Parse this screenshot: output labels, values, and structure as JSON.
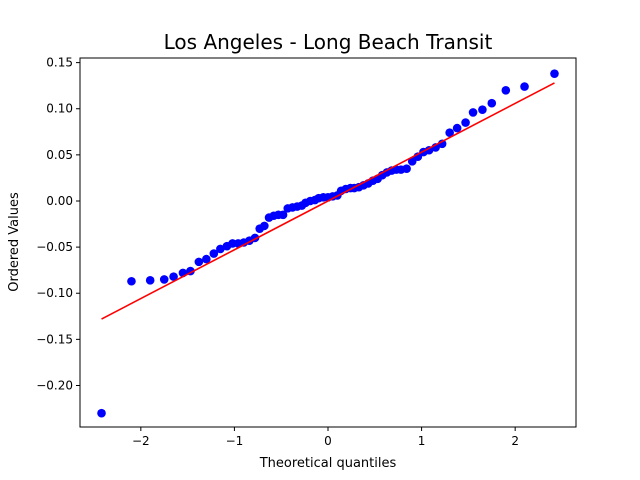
{
  "chart_data": {
    "type": "scatter",
    "title": "Los Angeles - Long Beach Transit",
    "xlabel": "Theoretical quantiles",
    "ylabel": "Ordered Values",
    "xlim": [
      -2.65,
      2.65
    ],
    "ylim": [
      -0.245,
      0.155
    ],
    "grid": false,
    "legend": "none",
    "x_ticks": [
      -2,
      -1,
      0,
      1,
      2
    ],
    "x_tick_labels": [
      "−2",
      "−1",
      "0",
      "1",
      "2"
    ],
    "y_ticks": [
      0.15,
      0.1,
      0.05,
      0.0,
      -0.05,
      -0.1,
      -0.15,
      -0.2
    ],
    "y_tick_labels": [
      "0.15",
      "0.10",
      "0.05",
      "0.00",
      "−0.05",
      "−0.10",
      "−0.15",
      "−0.20"
    ],
    "colors": {
      "points": "#0000ff",
      "fit_line": "#ff0000",
      "axes": "#000000",
      "background": "#ffffff"
    },
    "series": [
      {
        "kind": "points",
        "x": [
          -2.42,
          -2.1,
          -1.9,
          -1.75,
          -1.65,
          -1.55,
          -1.47,
          -1.38,
          -1.3,
          -1.22,
          -1.15,
          -1.08,
          -1.02,
          -0.96,
          -0.9,
          -0.84,
          -0.78,
          -0.73,
          -0.68,
          -0.63,
          -0.58,
          -0.53,
          -0.48,
          -0.43,
          -0.38,
          -0.33,
          -0.28,
          -0.24,
          -0.19,
          -0.14,
          -0.1,
          -0.05,
          0.0,
          0.05,
          0.1,
          0.14,
          0.19,
          0.24,
          0.28,
          0.33,
          0.38,
          0.43,
          0.48,
          0.53,
          0.58,
          0.63,
          0.68,
          0.73,
          0.78,
          0.84,
          0.9,
          0.96,
          1.02,
          1.08,
          1.15,
          1.22,
          1.3,
          1.38,
          1.47,
          1.55,
          1.65,
          1.75,
          1.9,
          2.1,
          2.42
        ],
        "y": [
          -0.23,
          -0.087,
          -0.086,
          -0.085,
          -0.082,
          -0.078,
          -0.076,
          -0.066,
          -0.063,
          -0.057,
          -0.052,
          -0.049,
          -0.046,
          -0.046,
          -0.045,
          -0.043,
          -0.04,
          -0.03,
          -0.027,
          -0.018,
          -0.016,
          -0.015,
          -0.015,
          -0.008,
          -0.007,
          -0.006,
          -0.005,
          -0.002,
          0.0,
          0.001,
          0.003,
          0.004,
          0.004,
          0.005,
          0.006,
          0.011,
          0.013,
          0.014,
          0.014,
          0.015,
          0.017,
          0.019,
          0.022,
          0.024,
          0.028,
          0.031,
          0.033,
          0.034,
          0.034,
          0.035,
          0.043,
          0.048,
          0.053,
          0.055,
          0.058,
          0.062,
          0.074,
          0.079,
          0.085,
          0.096,
          0.099,
          0.106,
          0.12,
          0.124,
          0.138
        ]
      },
      {
        "kind": "fit_line",
        "x": [
          -2.42,
          2.42
        ],
        "y": [
          -0.128,
          0.128
        ]
      }
    ]
  }
}
